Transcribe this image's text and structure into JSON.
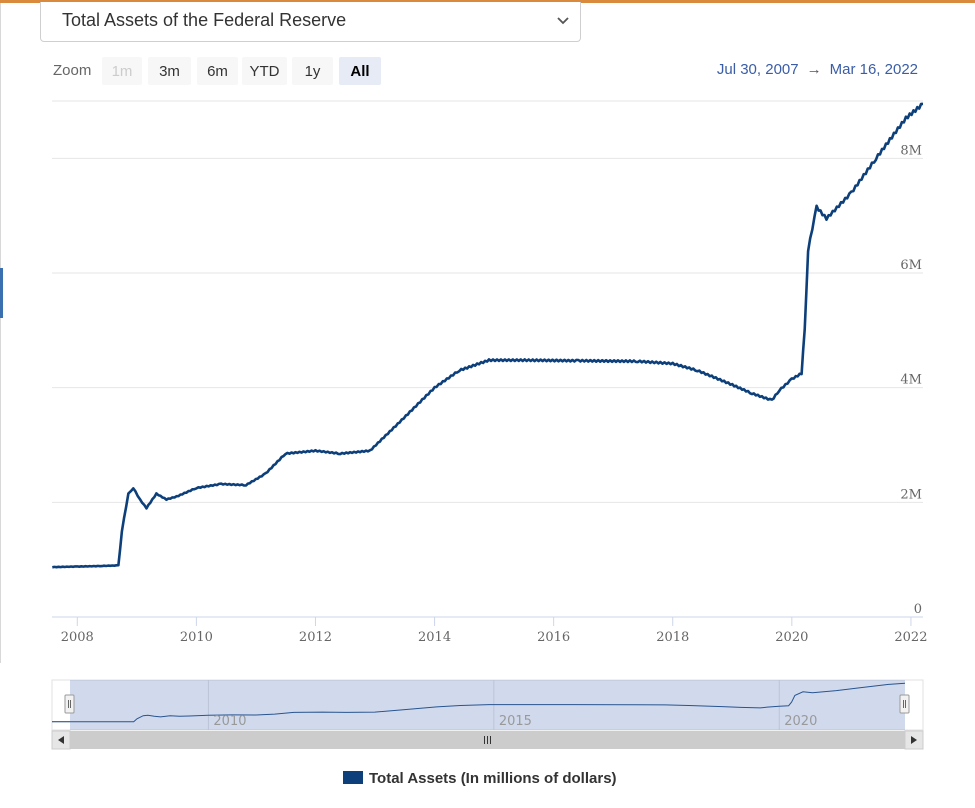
{
  "colors": {
    "accent_top": "#d98a3c",
    "series": "#0d3f7a",
    "navigator_mask": "rgba(102,133,194,0.3)",
    "scrollbar": "#e6e6e6"
  },
  "selector": {
    "label": "Total Assets of the Federal Reserve",
    "icon": "chevron-down-icon"
  },
  "zoom": {
    "label": "Zoom",
    "buttons": [
      {
        "label": "1m",
        "state": "disabled"
      },
      {
        "label": "3m",
        "state": "normal"
      },
      {
        "label": "6m",
        "state": "normal"
      },
      {
        "label": "YTD",
        "state": "normal"
      },
      {
        "label": "1y",
        "state": "normal"
      },
      {
        "label": "All",
        "state": "active"
      }
    ]
  },
  "range": {
    "from": "Jul 30, 2007",
    "arrow": "→",
    "to": "Mar 16, 2022"
  },
  "navigator": {
    "year_labels": [
      "2010",
      "2015",
      "2020"
    ],
    "handle_glyph": "||",
    "scroll_glyph": "III",
    "scroll_left": "◂",
    "scroll_right": "▸"
  },
  "chart_data": {
    "type": "line",
    "title": "",
    "xlabel": "",
    "ylabel": "",
    "x_range": [
      "2007-07-30",
      "2022-03-16"
    ],
    "ylim": [
      0,
      9000000
    ],
    "y_ticks": [
      0,
      2000000,
      4000000,
      6000000,
      8000000
    ],
    "y_tick_labels": [
      "0",
      "2M",
      "4M",
      "6M",
      "8M"
    ],
    "x_ticks": [
      "2008",
      "2010",
      "2012",
      "2014",
      "2016",
      "2018",
      "2020",
      "2022"
    ],
    "grid": true,
    "legend_position": "bottom-center",
    "series": [
      {
        "name": "Total Assets (In millions of dollars)",
        "points": [
          [
            "2007-08-01",
            870000
          ],
          [
            "2008-01-01",
            880000
          ],
          [
            "2008-06-01",
            890000
          ],
          [
            "2008-09-10",
            900000
          ],
          [
            "2008-10-01",
            1500000
          ],
          [
            "2008-11-10",
            2150000
          ],
          [
            "2008-12-10",
            2250000
          ],
          [
            "2009-01-20",
            2050000
          ],
          [
            "2009-03-01",
            1900000
          ],
          [
            "2009-05-01",
            2150000
          ],
          [
            "2009-07-01",
            2050000
          ],
          [
            "2009-09-01",
            2100000
          ],
          [
            "2010-01-01",
            2250000
          ],
          [
            "2010-06-01",
            2320000
          ],
          [
            "2010-11-01",
            2300000
          ],
          [
            "2011-03-01",
            2500000
          ],
          [
            "2011-07-01",
            2850000
          ],
          [
            "2012-01-01",
            2900000
          ],
          [
            "2012-06-01",
            2850000
          ],
          [
            "2012-12-01",
            2900000
          ],
          [
            "2013-06-01",
            3400000
          ],
          [
            "2014-01-01",
            4000000
          ],
          [
            "2014-06-01",
            4300000
          ],
          [
            "2014-12-01",
            4480000
          ],
          [
            "2015-06-01",
            4480000
          ],
          [
            "2016-06-01",
            4470000
          ],
          [
            "2017-06-01",
            4460000
          ],
          [
            "2018-01-01",
            4420000
          ],
          [
            "2018-06-01",
            4300000
          ],
          [
            "2019-01-01",
            4050000
          ],
          [
            "2019-05-01",
            3900000
          ],
          [
            "2019-09-01",
            3780000
          ],
          [
            "2019-10-15",
            3950000
          ],
          [
            "2020-01-01",
            4150000
          ],
          [
            "2020-03-01",
            4250000
          ],
          [
            "2020-03-20",
            5000000
          ],
          [
            "2020-04-10",
            6400000
          ],
          [
            "2020-06-01",
            7150000
          ],
          [
            "2020-08-01",
            6950000
          ],
          [
            "2021-01-01",
            7400000
          ],
          [
            "2021-06-01",
            8000000
          ],
          [
            "2021-12-01",
            8700000
          ],
          [
            "2022-03-16",
            8950000
          ]
        ]
      }
    ]
  }
}
